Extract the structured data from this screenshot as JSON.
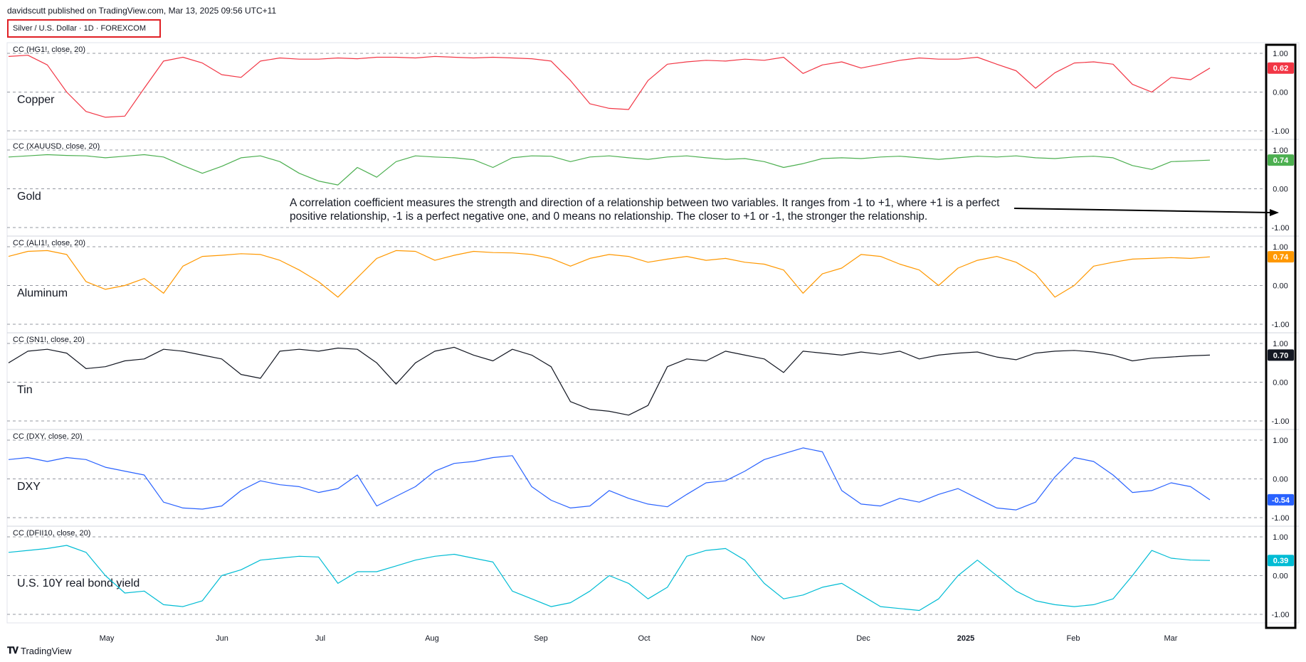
{
  "header": {
    "published": "davidscutt published on TradingView.com, Mar 13, 2025 09:56 UTC+11",
    "symbol": "Silver / U.S. Dollar · 1D · FOREXCOM"
  },
  "footer": {
    "logo_text": "TradingView",
    "logo_icon": "tradingview-logo-icon"
  },
  "annotation": "A correlation coefficient measures the strength and direction of a relationship between two variables. It ranges from -1 to +1, where +1 is a perfect positive relationship, -1 is a perfect negative one, and 0 means no relationship. The closer to +1 or -1, the stronger the relationship.",
  "chart_data": {
    "type": "line",
    "x_axis_labels": [
      "May",
      "Jun",
      "Jul",
      "Aug",
      "Sep",
      "Oct",
      "Nov",
      "Dec",
      "2025",
      "Feb",
      "Mar"
    ],
    "y_ticks": [
      "1.00",
      "0.00",
      "-1.00"
    ],
    "ylim": [
      -1,
      1
    ],
    "grid": "horizontal dashed at 1, 0, -1",
    "panels": [
      {
        "legend": "CC (HG1!, close, 20)",
        "name": "Copper",
        "color": "#f23645",
        "last_value": "0.62",
        "values": [
          0.92,
          0.95,
          0.7,
          0.0,
          -0.5,
          -0.65,
          -0.62,
          0.1,
          0.8,
          0.9,
          0.75,
          0.45,
          0.38,
          0.8,
          0.88,
          0.85,
          0.85,
          0.88,
          0.86,
          0.9,
          0.9,
          0.88,
          0.92,
          0.9,
          0.88,
          0.9,
          0.88,
          0.86,
          0.8,
          0.3,
          -0.3,
          -0.42,
          -0.45,
          0.3,
          0.72,
          0.78,
          0.82,
          0.8,
          0.85,
          0.82,
          0.9,
          0.48,
          0.7,
          0.78,
          0.62,
          0.72,
          0.82,
          0.88,
          0.85,
          0.85,
          0.9,
          0.72,
          0.55,
          0.1,
          0.5,
          0.75,
          0.78,
          0.72,
          0.2,
          0.0,
          0.38,
          0.32,
          0.62
        ]
      },
      {
        "legend": "CC (XAUUSD, close, 20)",
        "name": "Gold",
        "color": "#4caf50",
        "last_value": "0.74",
        "values": [
          0.82,
          0.85,
          0.88,
          0.86,
          0.85,
          0.8,
          0.84,
          0.88,
          0.82,
          0.6,
          0.4,
          0.58,
          0.8,
          0.85,
          0.7,
          0.4,
          0.2,
          0.1,
          0.55,
          0.3,
          0.7,
          0.85,
          0.82,
          0.8,
          0.75,
          0.55,
          0.8,
          0.85,
          0.84,
          0.7,
          0.82,
          0.85,
          0.8,
          0.76,
          0.82,
          0.85,
          0.8,
          0.76,
          0.78,
          0.7,
          0.55,
          0.65,
          0.78,
          0.8,
          0.78,
          0.82,
          0.84,
          0.8,
          0.76,
          0.8,
          0.84,
          0.82,
          0.85,
          0.8,
          0.78,
          0.82,
          0.84,
          0.8,
          0.6,
          0.5,
          0.7,
          0.72,
          0.74
        ]
      },
      {
        "legend": "CC (ALI1!, close, 20)",
        "name": "Aluminum",
        "color": "#ff9800",
        "last_value": "0.74",
        "values": [
          0.75,
          0.88,
          0.9,
          0.8,
          0.1,
          -0.1,
          0.0,
          0.18,
          -0.2,
          0.5,
          0.75,
          0.78,
          0.82,
          0.8,
          0.65,
          0.4,
          0.1,
          -0.3,
          0.2,
          0.7,
          0.9,
          0.88,
          0.65,
          0.78,
          0.88,
          0.85,
          0.84,
          0.8,
          0.7,
          0.5,
          0.7,
          0.8,
          0.75,
          0.6,
          0.68,
          0.75,
          0.65,
          0.7,
          0.6,
          0.55,
          0.4,
          -0.2,
          0.3,
          0.45,
          0.8,
          0.75,
          0.55,
          0.4,
          0.0,
          0.45,
          0.65,
          0.75,
          0.6,
          0.3,
          -0.3,
          0.0,
          0.5,
          0.6,
          0.68,
          0.7,
          0.72,
          0.7,
          0.74
        ]
      },
      {
        "legend": "CC (SN1!, close, 20)",
        "name": "Tin",
        "color": "#131722",
        "last_value": "0.70",
        "values": [
          0.5,
          0.8,
          0.85,
          0.75,
          0.35,
          0.4,
          0.55,
          0.6,
          0.85,
          0.8,
          0.7,
          0.6,
          0.2,
          0.1,
          0.8,
          0.85,
          0.8,
          0.88,
          0.85,
          0.5,
          -0.05,
          0.5,
          0.8,
          0.9,
          0.7,
          0.55,
          0.85,
          0.7,
          0.4,
          -0.5,
          -0.7,
          -0.75,
          -0.85,
          -0.6,
          0.4,
          0.6,
          0.55,
          0.8,
          0.7,
          0.6,
          0.25,
          0.8,
          0.75,
          0.7,
          0.78,
          0.72,
          0.8,
          0.6,
          0.7,
          0.75,
          0.78,
          0.65,
          0.58,
          0.75,
          0.8,
          0.82,
          0.78,
          0.7,
          0.55,
          0.62,
          0.65,
          0.68,
          0.7
        ]
      },
      {
        "legend": "CC (DXY, close, 20)",
        "name": "DXY",
        "color": "#2962ff",
        "last_value": "-0.54",
        "values": [
          0.5,
          0.55,
          0.45,
          0.55,
          0.5,
          0.3,
          0.2,
          0.1,
          -0.6,
          -0.75,
          -0.78,
          -0.7,
          -0.3,
          -0.05,
          -0.15,
          -0.2,
          -0.35,
          -0.25,
          0.1,
          -0.7,
          -0.45,
          -0.2,
          0.2,
          0.4,
          0.45,
          0.55,
          0.6,
          -0.2,
          -0.55,
          -0.75,
          -0.7,
          -0.3,
          -0.5,
          -0.65,
          -0.72,
          -0.4,
          -0.1,
          -0.05,
          0.2,
          0.5,
          0.65,
          0.8,
          0.7,
          -0.3,
          -0.65,
          -0.7,
          -0.5,
          -0.6,
          -0.4,
          -0.25,
          -0.5,
          -0.75,
          -0.8,
          -0.6,
          0.05,
          0.55,
          0.45,
          0.1,
          -0.35,
          -0.3,
          -0.1,
          -0.2,
          -0.54
        ]
      },
      {
        "legend": "CC (DFII10, close, 20)",
        "name": "U.S. 10Y real bond yield",
        "color": "#00bcd4",
        "last_value": "0.39",
        "values": [
          0.6,
          0.65,
          0.7,
          0.78,
          0.6,
          0.0,
          -0.45,
          -0.4,
          -0.75,
          -0.8,
          -0.65,
          0.0,
          0.15,
          0.4,
          0.45,
          0.5,
          0.48,
          -0.2,
          0.1,
          0.1,
          0.25,
          0.4,
          0.5,
          0.55,
          0.45,
          0.35,
          -0.4,
          -0.6,
          -0.8,
          -0.7,
          -0.4,
          0.0,
          -0.2,
          -0.6,
          -0.3,
          0.5,
          0.65,
          0.7,
          0.4,
          -0.2,
          -0.6,
          -0.5,
          -0.3,
          -0.2,
          -0.5,
          -0.8,
          -0.85,
          -0.9,
          -0.6,
          0.0,
          0.4,
          0.0,
          -0.4,
          -0.65,
          -0.75,
          -0.8,
          -0.75,
          -0.6,
          0.0,
          0.65,
          0.45,
          0.4,
          0.39
        ]
      }
    ]
  }
}
